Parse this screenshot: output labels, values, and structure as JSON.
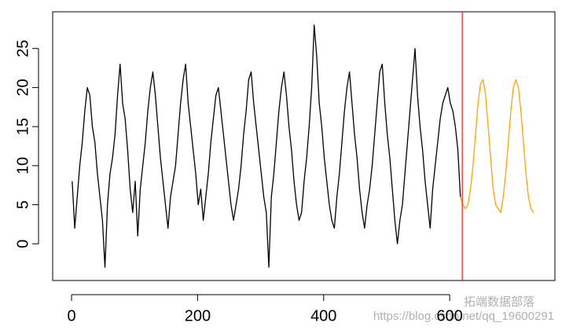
{
  "chart_data": {
    "type": "line",
    "xlim": [
      -30,
      767
    ],
    "ylim": [
      -4.7,
      29.7
    ],
    "xticks": [
      0,
      200,
      400,
      600
    ],
    "yticks": [
      0,
      5,
      10,
      15,
      20,
      25
    ],
    "vline": {
      "x": 620,
      "color": "#e41a1c"
    },
    "series": [
      {
        "color": "#000000",
        "x": [
          1,
          5,
          9,
          13,
          17,
          21,
          25,
          29,
          33,
          37,
          41,
          45,
          49,
          53,
          57,
          61,
          65,
          69,
          73,
          77,
          81,
          85,
          89,
          93,
          97,
          101,
          105,
          109,
          113,
          117,
          121,
          125,
          129,
          133,
          137,
          141,
          145,
          149,
          153,
          157,
          161,
          165,
          169,
          173,
          177,
          181,
          185,
          189,
          193,
          197,
          201,
          205,
          209,
          213,
          217,
          221,
          225,
          229,
          233,
          237,
          241,
          245,
          249,
          253,
          257,
          261,
          265,
          269,
          273,
          277,
          281,
          285,
          289,
          293,
          297,
          301,
          305,
          309,
          313,
          317,
          321,
          325,
          329,
          333,
          337,
          341,
          345,
          349,
          353,
          357,
          361,
          365,
          369,
          373,
          377,
          381,
          385,
          389,
          393,
          397,
          401,
          405,
          409,
          413,
          417,
          421,
          425,
          429,
          433,
          437,
          441,
          445,
          449,
          453,
          457,
          461,
          465,
          469,
          473,
          477,
          481,
          485,
          489,
          493,
          497,
          501,
          505,
          509,
          513,
          517,
          521,
          525,
          529,
          533,
          537,
          541,
          545,
          549,
          553,
          557,
          561,
          565,
          569,
          573,
          577,
          581,
          585,
          589,
          593,
          597,
          601,
          605,
          609,
          613,
          617
        ],
        "values": [
          8,
          2,
          6,
          10,
          13,
          17,
          20,
          19,
          15,
          13,
          9,
          6,
          3,
          -3,
          5,
          9,
          11,
          14,
          19,
          23,
          18,
          16,
          12,
          7,
          4,
          8,
          1,
          7,
          10,
          13,
          17,
          20,
          22,
          19,
          15,
          11,
          8,
          5,
          2,
          6,
          8,
          10,
          14,
          18,
          21,
          23,
          18,
          15,
          12,
          9,
          5,
          7,
          3,
          6,
          9,
          13,
          16,
          19,
          20,
          17,
          14,
          11,
          8,
          5,
          3,
          5,
          7,
          10,
          14,
          17,
          21,
          22,
          18,
          15,
          12,
          9,
          6,
          4,
          -3,
          6,
          9,
          13,
          17,
          20,
          22,
          19,
          15,
          12,
          8,
          5,
          3,
          4,
          8,
          11,
          15,
          20,
          28,
          24,
          18,
          15,
          11,
          8,
          5,
          3,
          2,
          6,
          9,
          13,
          17,
          20,
          22,
          18,
          14,
          11,
          7,
          4,
          2,
          5,
          7,
          10,
          14,
          18,
          22,
          23,
          18,
          14,
          11,
          7,
          3,
          0,
          3,
          5,
          9,
          13,
          17,
          21,
          25,
          19,
          15,
          12,
          8,
          5,
          2,
          7,
          10,
          13,
          16,
          18,
          19,
          20,
          18,
          17,
          15,
          12,
          6
        ]
      },
      {
        "color": "#ffa500",
        "x": [
          617,
          621,
          625,
          629,
          633,
          637,
          641,
          645,
          649,
          653,
          657,
          661,
          665,
          669,
          673,
          677,
          681,
          685,
          689,
          693,
          697,
          701,
          705,
          709,
          713,
          717,
          721,
          725,
          729,
          733
        ],
        "values": [
          6,
          5,
          4.5,
          5,
          7,
          10,
          14,
          18,
          20.5,
          21,
          19,
          15,
          11,
          7,
          5,
          4.5,
          4,
          6,
          9,
          13,
          17,
          20,
          21,
          20,
          17,
          13,
          9,
          6,
          4.5,
          4
        ]
      }
    ],
    "watermark": [
      "拓端数据部落",
      "https://blog.csdn.net/qq_19600291"
    ]
  }
}
